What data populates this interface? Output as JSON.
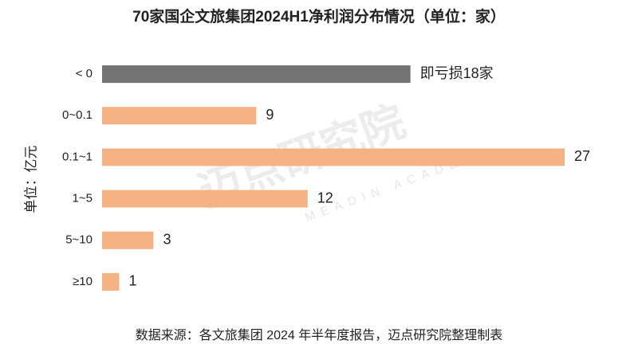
{
  "chart_data": {
    "type": "bar",
    "orientation": "horizontal",
    "title": "70家国企文旅集团2024H1净利润分布情况（单位：家）",
    "y_label": "单位：亿元",
    "categories": [
      "< 0",
      "0~0.1",
      "0.1~1",
      "1~5",
      "5~10",
      "≥10"
    ],
    "values": [
      18,
      9,
      27,
      12,
      3,
      1
    ],
    "value_labels": [
      "即亏损18家",
      "9",
      "27",
      "12",
      "3",
      "1"
    ],
    "colors": [
      "#737373",
      "#f4b183",
      "#f4b183",
      "#f4b183",
      "#f4b183",
      "#f4b183"
    ],
    "xlim": [
      0,
      27
    ],
    "watermark": {
      "name": "迈点研究院",
      "subtitle": "MEADIN ACADEMY"
    },
    "source": "数据来源：各文旅集团 2024 年半年度报告，迈点研究院整理制表"
  }
}
